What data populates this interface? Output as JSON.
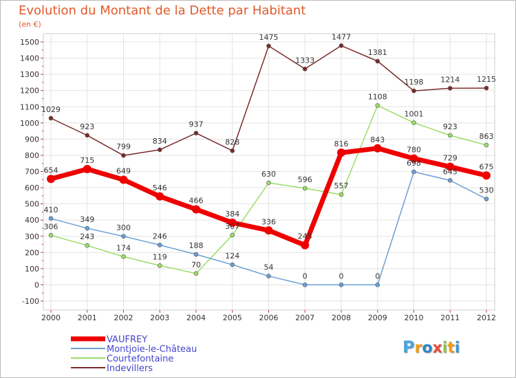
{
  "chart_data": {
    "type": "line",
    "title": "Evolution du Montant de la Dette par Habitant",
    "subtitle": "(en €)",
    "xlabel": "",
    "ylabel": "",
    "categories": [
      "2000",
      "2001",
      "2002",
      "2003",
      "2004",
      "2005",
      "2006",
      "2007",
      "2008",
      "2009",
      "2010",
      "2011",
      "2012"
    ],
    "ylim": [
      -100,
      1500
    ],
    "yticks": [
      -100,
      0,
      100,
      200,
      300,
      400,
      500,
      600,
      700,
      800,
      900,
      1000,
      1100,
      1200,
      1300,
      1400,
      1500
    ],
    "grid": true,
    "legend_position": "bottom-left",
    "series": [
      {
        "name": "VAUFREY",
        "color": "#ee0000",
        "values": [
          654,
          715,
          649,
          546,
          466,
          384,
          336,
          245,
          816,
          843,
          780,
          729,
          675
        ]
      },
      {
        "name": "Montjoie-le-Château",
        "color": "#6a9fd4",
        "values": [
          410,
          349,
          300,
          246,
          188,
          124,
          54,
          0,
          0,
          0,
          698,
          645,
          530
        ]
      },
      {
        "name": "Courtefontaine",
        "color": "#99dd66",
        "values": [
          306,
          243,
          174,
          119,
          70,
          307,
          630,
          596,
          557,
          1108,
          1001,
          923,
          863
        ]
      },
      {
        "name": "Indevillers",
        "color": "#7a2a2a",
        "values": [
          1029,
          923,
          799,
          834,
          937,
          828,
          1475,
          1333,
          1477,
          1381,
          1198,
          1214,
          1215
        ]
      }
    ]
  },
  "logo": {
    "letters": [
      "P",
      "r",
      "o",
      "x",
      "i",
      "t",
      "i"
    ],
    "colors": [
      "#4aa3df",
      "#f39c12",
      "#2e86c1",
      "#e74c3c",
      "#8bc34a",
      "#f39c12",
      "#3498db"
    ]
  }
}
